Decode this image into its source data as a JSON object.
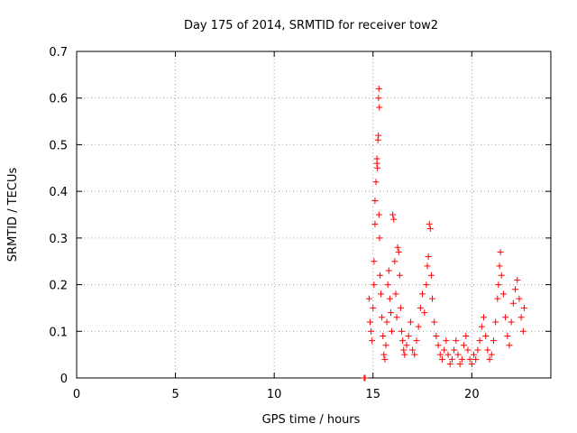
{
  "chart_data": {
    "type": "scatter",
    "title": "Day 175 of 2014, SRMTID for receiver tow2",
    "xlabel": "GPS time / hours",
    "ylabel": "SRMTID / TECUs",
    "xlim": [
      0,
      24
    ],
    "ylim": [
      0,
      0.7
    ],
    "xticks": [
      0,
      5,
      10,
      15,
      20
    ],
    "yticks": [
      0,
      0.1,
      0.2,
      0.3,
      0.4,
      0.5,
      0.6,
      0.7
    ],
    "grid": true,
    "marker": "+",
    "color": "#ff0000",
    "series": [
      {
        "name": "tow2",
        "points": [
          [
            14.55,
            0.0
          ],
          [
            14.6,
            0.0
          ],
          [
            14.8,
            0.17
          ],
          [
            14.85,
            0.12
          ],
          [
            14.9,
            0.1
          ],
          [
            14.95,
            0.08
          ],
          [
            15.0,
            0.15
          ],
          [
            15.05,
            0.2
          ],
          [
            15.05,
            0.25
          ],
          [
            15.1,
            0.33
          ],
          [
            15.1,
            0.38
          ],
          [
            15.15,
            0.42
          ],
          [
            15.2,
            0.46
          ],
          [
            15.2,
            0.47
          ],
          [
            15.22,
            0.45
          ],
          [
            15.25,
            0.51
          ],
          [
            15.27,
            0.52
          ],
          [
            15.28,
            0.6
          ],
          [
            15.3,
            0.62
          ],
          [
            15.32,
            0.58
          ],
          [
            15.3,
            0.35
          ],
          [
            15.33,
            0.3
          ],
          [
            15.35,
            0.22
          ],
          [
            15.4,
            0.18
          ],
          [
            15.45,
            0.13
          ],
          [
            15.5,
            0.09
          ],
          [
            15.55,
            0.05
          ],
          [
            15.6,
            0.04
          ],
          [
            15.65,
            0.07
          ],
          [
            15.7,
            0.12
          ],
          [
            15.75,
            0.2
          ],
          [
            15.8,
            0.23
          ],
          [
            15.85,
            0.17
          ],
          [
            15.9,
            0.14
          ],
          [
            15.95,
            0.1
          ],
          [
            16.0,
            0.35
          ],
          [
            16.05,
            0.34
          ],
          [
            16.1,
            0.25
          ],
          [
            16.15,
            0.18
          ],
          [
            16.2,
            0.13
          ],
          [
            16.25,
            0.28
          ],
          [
            16.3,
            0.27
          ],
          [
            16.35,
            0.22
          ],
          [
            16.4,
            0.15
          ],
          [
            16.45,
            0.1
          ],
          [
            16.5,
            0.08
          ],
          [
            16.55,
            0.06
          ],
          [
            16.6,
            0.05
          ],
          [
            16.7,
            0.07
          ],
          [
            16.8,
            0.09
          ],
          [
            16.9,
            0.12
          ],
          [
            17.0,
            0.06
          ],
          [
            17.1,
            0.05
          ],
          [
            17.2,
            0.08
          ],
          [
            17.3,
            0.11
          ],
          [
            17.4,
            0.15
          ],
          [
            17.5,
            0.18
          ],
          [
            17.6,
            0.14
          ],
          [
            17.7,
            0.2
          ],
          [
            17.75,
            0.24
          ],
          [
            17.8,
            0.26
          ],
          [
            17.85,
            0.33
          ],
          [
            17.9,
            0.32
          ],
          [
            17.95,
            0.22
          ],
          [
            18.0,
            0.17
          ],
          [
            18.1,
            0.12
          ],
          [
            18.2,
            0.09
          ],
          [
            18.3,
            0.07
          ],
          [
            18.4,
            0.05
          ],
          [
            18.5,
            0.04
          ],
          [
            18.6,
            0.06
          ],
          [
            18.7,
            0.08
          ],
          [
            18.8,
            0.05
          ],
          [
            18.9,
            0.03
          ],
          [
            19.0,
            0.04
          ],
          [
            19.1,
            0.06
          ],
          [
            19.2,
            0.08
          ],
          [
            19.3,
            0.05
          ],
          [
            19.4,
            0.03
          ],
          [
            19.5,
            0.04
          ],
          [
            19.6,
            0.07
          ],
          [
            19.7,
            0.09
          ],
          [
            19.8,
            0.06
          ],
          [
            19.9,
            0.04
          ],
          [
            20.0,
            0.03
          ],
          [
            20.1,
            0.05
          ],
          [
            20.2,
            0.04
          ],
          [
            20.3,
            0.06
          ],
          [
            20.4,
            0.08
          ],
          [
            20.5,
            0.11
          ],
          [
            20.6,
            0.13
          ],
          [
            20.7,
            0.09
          ],
          [
            20.8,
            0.06
          ],
          [
            20.9,
            0.04
          ],
          [
            21.0,
            0.05
          ],
          [
            21.1,
            0.08
          ],
          [
            21.2,
            0.12
          ],
          [
            21.3,
            0.17
          ],
          [
            21.35,
            0.2
          ],
          [
            21.4,
            0.24
          ],
          [
            21.45,
            0.27
          ],
          [
            21.5,
            0.22
          ],
          [
            21.6,
            0.18
          ],
          [
            21.7,
            0.13
          ],
          [
            21.8,
            0.09
          ],
          [
            21.9,
            0.07
          ],
          [
            22.0,
            0.12
          ],
          [
            22.1,
            0.16
          ],
          [
            22.2,
            0.19
          ],
          [
            22.3,
            0.21
          ],
          [
            22.4,
            0.17
          ],
          [
            22.5,
            0.13
          ],
          [
            22.6,
            0.1
          ],
          [
            22.65,
            0.15
          ]
        ]
      }
    ]
  }
}
